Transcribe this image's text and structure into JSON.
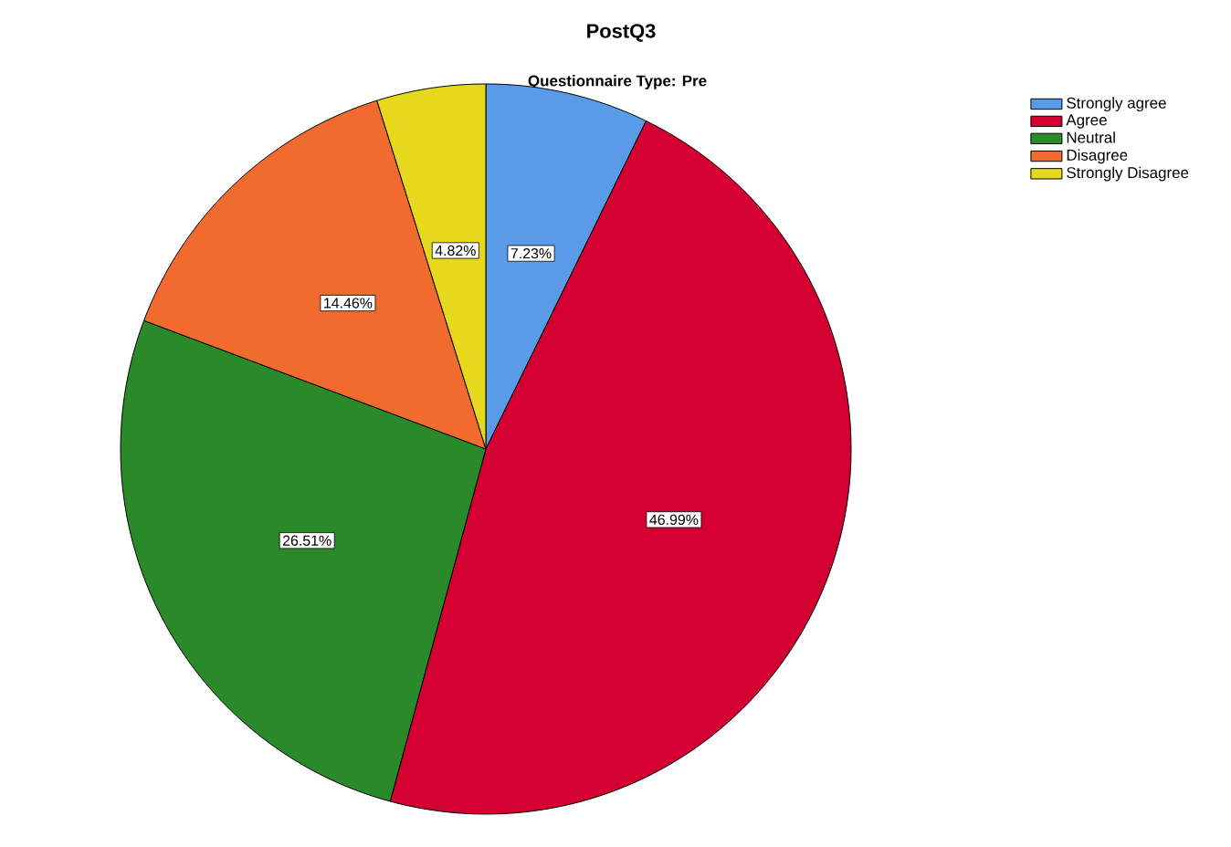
{
  "chart_data": {
    "type": "pie",
    "title": "PostQ3",
    "subtitle": "Questionnaire Type: Pre",
    "categories": [
      "Strongly agree",
      "Agree",
      "Neutral",
      "Disagree",
      "Strongly Disagree"
    ],
    "values": [
      7.23,
      46.99,
      26.51,
      14.46,
      4.82
    ],
    "colors": [
      "#5a9be8",
      "#d40032",
      "#2a8a2a",
      "#f26b2e",
      "#e6d81c"
    ],
    "value_labels": [
      "7.23%",
      "46.99%",
      "26.51%",
      "14.46%",
      "4.82%"
    ],
    "legend": "top right"
  }
}
